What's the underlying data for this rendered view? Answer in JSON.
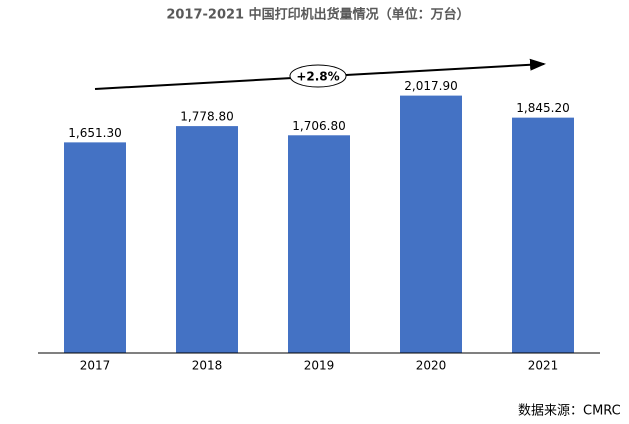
{
  "chart_data": {
    "type": "bar",
    "title": "2017-2021 中国打印机出货量情况（单位：万台）",
    "categories": [
      "2017",
      "2018",
      "2019",
      "2020",
      "2021"
    ],
    "values": [
      1651.3,
      1778.8,
      1706.8,
      2017.9,
      1845.2
    ],
    "value_labels": [
      "1,651.30",
      "1,778.80",
      "1,706.80",
      "2,017.90",
      "1,845.20"
    ],
    "color": "#4472c4",
    "ylim": [
      0,
      2250
    ],
    "annotation": "+2.8%",
    "source": "数据来源：CMRC"
  }
}
